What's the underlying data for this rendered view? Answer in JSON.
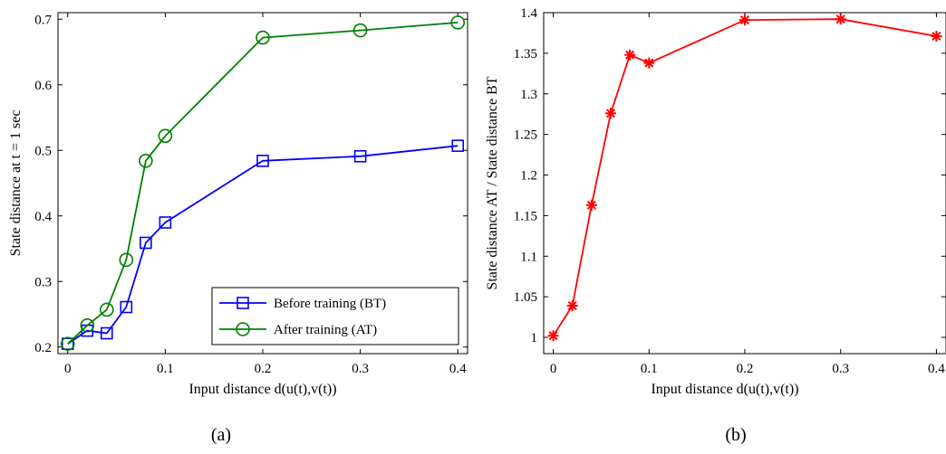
{
  "captions": {
    "a": "(a)",
    "b": "(b)"
  },
  "chart_data": [
    {
      "type": "line",
      "xlabel": "Input distance d(u(t),v(t))",
      "ylabel": "State distance at t = 1 sec",
      "xlim": [
        -0.01,
        0.41
      ],
      "ylim": [
        0.19,
        0.71
      ],
      "xticks": [
        0,
        0.1,
        0.2,
        0.3,
        0.4
      ],
      "xtick_labels": [
        "0",
        "0.1",
        "0.2",
        "0.3",
        "0.4"
      ],
      "yticks": [
        0.2,
        0.3,
        0.4,
        0.5,
        0.6,
        0.7
      ],
      "ytick_labels": [
        "0.2",
        "0.3",
        "0.4",
        "0.5",
        "0.6",
        "0.7"
      ],
      "legend": "bottom-right",
      "grid": false,
      "x": [
        0,
        0.02,
        0.04,
        0.06,
        0.08,
        0.1,
        0.2,
        0.3,
        0.4
      ],
      "series": [
        {
          "name": "Before training (BT)",
          "color": "#0000ff",
          "marker": "square",
          "values": [
            0.205,
            0.225,
            0.221,
            0.261,
            0.359,
            0.39,
            0.484,
            0.491,
            0.507
          ]
        },
        {
          "name": "After training (AT)",
          "color": "#008000",
          "marker": "circle",
          "values": [
            0.205,
            0.233,
            0.257,
            0.333,
            0.484,
            0.522,
            0.672,
            0.683,
            0.695
          ]
        }
      ]
    },
    {
      "type": "line",
      "xlabel": "Input distance d(u(t),v(t))",
      "ylabel": "State distance AT / State distance BT",
      "xlim": [
        -0.01,
        0.41
      ],
      "ylim": [
        0.98,
        1.4
      ],
      "xticks": [
        0,
        0.1,
        0.2,
        0.3,
        0.4
      ],
      "xtick_labels": [
        "0",
        "0.1",
        "0.2",
        "0.3",
        "0.4"
      ],
      "yticks": [
        1,
        1.05,
        1.1,
        1.15,
        1.2,
        1.25,
        1.3,
        1.35,
        1.4
      ],
      "ytick_labels": [
        "1",
        "1.05",
        "1.1",
        "1.15",
        "1.2",
        "1.25",
        "1.3",
        "1.35",
        "1.4"
      ],
      "grid": false,
      "x": [
        0,
        0.02,
        0.04,
        0.06,
        0.08,
        0.1,
        0.2,
        0.3,
        0.4
      ],
      "series": [
        {
          "color": "#ff0000",
          "marker": "asterisk",
          "values": [
            1.002,
            1.039,
            1.163,
            1.276,
            1.348,
            1.338,
            1.391,
            1.392,
            1.371
          ]
        }
      ]
    }
  ]
}
